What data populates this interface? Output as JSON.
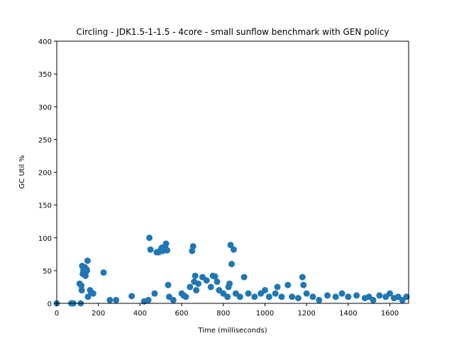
{
  "chart_data": {
    "type": "scatter",
    "title": "Circling - JDK1.5-1-1.5 - 4core -  small sunflow benchmark with GEN policy",
    "xlabel": "Time (milliseconds)",
    "ylabel": "GC Util %",
    "xlim": [
      0,
      1690
    ],
    "ylim": [
      0,
      400
    ],
    "xticks": [
      0,
      200,
      400,
      600,
      800,
      1000,
      1200,
      1400,
      1600
    ],
    "yticks": [
      0,
      50,
      100,
      150,
      200,
      250,
      300,
      350,
      400
    ],
    "marker_color": "#1f77b4",
    "grid": false,
    "series": [
      {
        "x": [
          0,
          70,
          80,
          110,
          115,
          118,
          120,
          122,
          125,
          128,
          130,
          132,
          135,
          138,
          140,
          143,
          145,
          148,
          150,
          160,
          165,
          175,
          225,
          255,
          285,
          360,
          420,
          440,
          445,
          450,
          470,
          480,
          490,
          500,
          505,
          510,
          515,
          520,
          525,
          530,
          535,
          540,
          560,
          600,
          610,
          620,
          640,
          650,
          655,
          660,
          665,
          670,
          680,
          700,
          720,
          740,
          750,
          760,
          770,
          780,
          800,
          820,
          825,
          830,
          835,
          840,
          850,
          860,
          880,
          900,
          920,
          950,
          980,
          1000,
          1020,
          1050,
          1060,
          1080,
          1110,
          1130,
          1160,
          1180,
          1185,
          1200,
          1230,
          1260,
          1300,
          1340,
          1370,
          1400,
          1440,
          1480,
          1500,
          1520,
          1550,
          1580,
          1600,
          1620,
          1640,
          1660,
          1680
        ],
        "y": [
          0,
          0,
          0,
          30,
          0,
          27,
          20,
          57,
          45,
          50,
          47,
          52,
          55,
          42,
          48,
          52,
          50,
          65,
          10,
          20,
          17,
          15,
          47,
          5,
          5,
          11,
          3,
          5,
          100,
          82,
          15,
          78,
          78,
          82,
          85,
          80,
          83,
          86,
          91,
          81,
          28,
          10,
          5,
          15,
          12,
          10,
          25,
          80,
          87,
          33,
          42,
          20,
          30,
          40,
          35,
          25,
          42,
          41,
          33,
          20,
          15,
          10,
          25,
          30,
          89,
          60,
          82,
          15,
          10,
          40,
          15,
          10,
          15,
          20,
          10,
          15,
          25,
          10,
          28,
          10,
          8,
          40,
          28,
          15,
          10,
          5,
          12,
          10,
          15,
          10,
          12,
          8,
          10,
          5,
          12,
          10,
          15,
          8,
          10,
          5,
          10
        ]
      }
    ]
  }
}
